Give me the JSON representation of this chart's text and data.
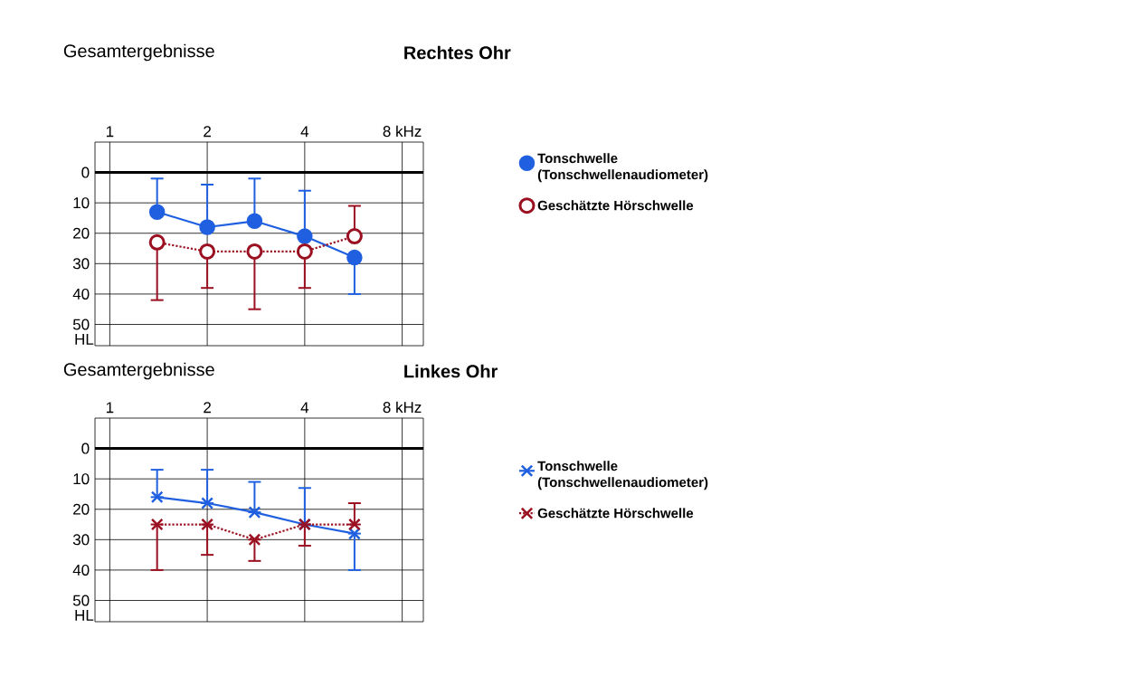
{
  "chart_data": [
    {
      "type": "line",
      "title": "Rechtes Ohr",
      "subtitle": "Gesamtergebnisse",
      "ylabel": "HL",
      "x": [
        1.4,
        2,
        2.8,
        4,
        5.7
      ],
      "series": [
        {
          "name": "Tonschwelle (Tonschwellenaudiometer)",
          "color": "#2060e0",
          "marker": "circle",
          "line_style": "solid",
          "values": [
            13,
            18,
            16,
            21,
            28
          ],
          "errors": [
            [
              2,
              13
            ],
            [
              4,
              18
            ],
            [
              2,
              16
            ],
            [
              6,
              21
            ],
            [
              28,
              40
            ]
          ]
        },
        {
          "name": "Geschätzte Hörschwelle",
          "color": "#9b1020",
          "marker": "circle",
          "line_style": "dotted",
          "values": [
            23,
            26,
            26,
            26,
            21
          ],
          "errors": [
            [
              23,
              42
            ],
            [
              26,
              38
            ],
            [
              26,
              45
            ],
            [
              26,
              38
            ],
            [
              11,
              21
            ]
          ]
        }
      ],
      "log": "x",
      "xlim": [
        0.9,
        9.3
      ],
      "xticks": [
        1,
        2,
        4,
        {
          "value": 8,
          "label": "8 kHz"
        }
      ],
      "ylim": [
        57,
        -10
      ],
      "yticks": [
        0,
        10,
        20,
        30,
        40,
        50
      ],
      "ref_lines": [
        {
          "axis": "y",
          "value": 0,
          "color": "#000000"
        }
      ],
      "grid": true,
      "legend": "right"
    },
    {
      "type": "line",
      "title": "Linkes Ohr",
      "subtitle": "Gesamtergebnisse",
      "ylabel": "HL",
      "x": [
        1.4,
        2,
        2.8,
        4,
        5.7
      ],
      "series": [
        {
          "name": "Tonschwelle (Tonschwellenaudiometer)",
          "color": "#2060e0",
          "marker": "cross",
          "line_style": "solid",
          "values": [
            16,
            18,
            21,
            25,
            28
          ],
          "errors": [
            [
              7,
              16
            ],
            [
              7,
              18
            ],
            [
              11,
              21
            ],
            [
              13,
              25
            ],
            [
              28,
              40
            ]
          ]
        },
        {
          "name": "Geschätzte Hörschwelle",
          "color": "#9b1020",
          "marker": "cross",
          "line_style": "dotted",
          "values": [
            25,
            25,
            30,
            25,
            25
          ],
          "errors": [
            [
              25,
              40
            ],
            [
              25,
              35
            ],
            [
              30,
              37
            ],
            [
              25,
              32
            ],
            [
              18,
              25
            ]
          ]
        }
      ],
      "log": "x",
      "xlim": [
        0.9,
        9.3
      ],
      "xticks": [
        1,
        2,
        4,
        {
          "value": 8,
          "label": "8 kHz"
        }
      ],
      "ylim": [
        57,
        -10
      ],
      "yticks": [
        0,
        10,
        20,
        30,
        40,
        50
      ],
      "ref_lines": [
        {
          "axis": "y",
          "value": 0,
          "color": "#000000"
        }
      ],
      "grid": true,
      "legend": "right"
    }
  ]
}
